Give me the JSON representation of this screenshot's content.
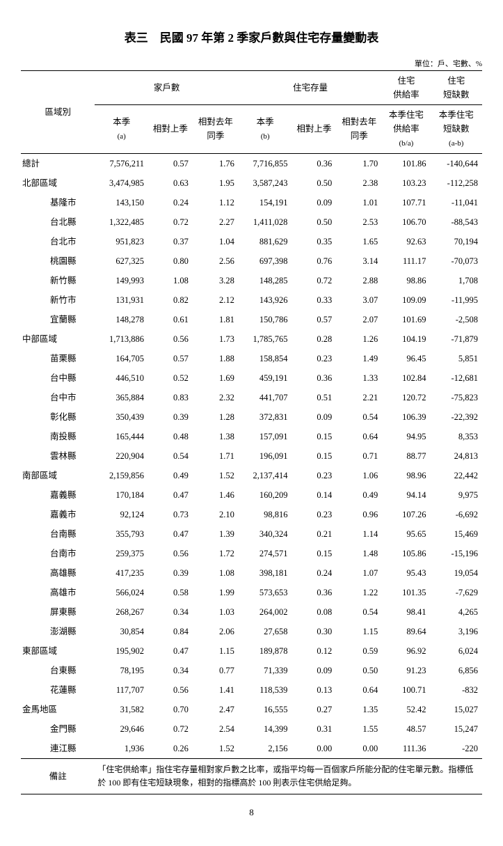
{
  "title": "表三　民國 97 年第 2 季家戶數與住宅存量變動表",
  "unit": "單位：戶、宅數、%",
  "header": {
    "region": "區域別",
    "group_households": "家戶數",
    "group_stock": "住宅存量",
    "group_supply": "住宅\n供給率",
    "group_shortage": "住宅\n短缺數",
    "hh_this": "本季",
    "hh_this_sub": "(a)",
    "hh_prev": "相對上季",
    "hh_lastyear": "相對去年\n同季",
    "st_this": "本季",
    "st_this_sub": "(b)",
    "st_prev": "相對上季",
    "st_lastyear": "相對去年\n同季",
    "supply": "本季住宅\n供給率",
    "supply_sub": "(b/a)",
    "shortage": "本季住宅\n短缺數",
    "shortage_sub": "(a-b)"
  },
  "rows": [
    {
      "indent": 0,
      "region": "總計",
      "a": "7,576,211",
      "b": "0.57",
      "c": "1.76",
      "d": "7,716,855",
      "e": "0.36",
      "f": "1.70",
      "g": "101.86",
      "h": "-140,644"
    },
    {
      "indent": 0,
      "region": "北部區域",
      "a": "3,474,985",
      "b": "0.63",
      "c": "1.95",
      "d": "3,587,243",
      "e": "0.50",
      "f": "2.38",
      "g": "103.23",
      "h": "-112,258"
    },
    {
      "indent": 1,
      "region": "基隆市",
      "a": "143,150",
      "b": "0.24",
      "c": "1.12",
      "d": "154,191",
      "e": "0.09",
      "f": "1.01",
      "g": "107.71",
      "h": "-11,041"
    },
    {
      "indent": 1,
      "region": "台北縣",
      "a": "1,322,485",
      "b": "0.72",
      "c": "2.27",
      "d": "1,411,028",
      "e": "0.50",
      "f": "2.53",
      "g": "106.70",
      "h": "-88,543"
    },
    {
      "indent": 1,
      "region": "台北市",
      "a": "951,823",
      "b": "0.37",
      "c": "1.04",
      "d": "881,629",
      "e": "0.35",
      "f": "1.65",
      "g": "92.63",
      "h": "70,194"
    },
    {
      "indent": 1,
      "region": "桃園縣",
      "a": "627,325",
      "b": "0.80",
      "c": "2.56",
      "d": "697,398",
      "e": "0.76",
      "f": "3.14",
      "g": "111.17",
      "h": "-70,073"
    },
    {
      "indent": 1,
      "region": "新竹縣",
      "a": "149,993",
      "b": "1.08",
      "c": "3.28",
      "d": "148,285",
      "e": "0.72",
      "f": "2.88",
      "g": "98.86",
      "h": "1,708"
    },
    {
      "indent": 1,
      "region": "新竹市",
      "a": "131,931",
      "b": "0.82",
      "c": "2.12",
      "d": "143,926",
      "e": "0.33",
      "f": "3.07",
      "g": "109.09",
      "h": "-11,995"
    },
    {
      "indent": 1,
      "region": "宜蘭縣",
      "a": "148,278",
      "b": "0.61",
      "c": "1.81",
      "d": "150,786",
      "e": "0.57",
      "f": "2.07",
      "g": "101.69",
      "h": "-2,508"
    },
    {
      "indent": 0,
      "region": "中部區域",
      "a": "1,713,886",
      "b": "0.56",
      "c": "1.73",
      "d": "1,785,765",
      "e": "0.28",
      "f": "1.26",
      "g": "104.19",
      "h": "-71,879"
    },
    {
      "indent": 1,
      "region": "苗栗縣",
      "a": "164,705",
      "b": "0.57",
      "c": "1.88",
      "d": "158,854",
      "e": "0.23",
      "f": "1.49",
      "g": "96.45",
      "h": "5,851"
    },
    {
      "indent": 1,
      "region": "台中縣",
      "a": "446,510",
      "b": "0.52",
      "c": "1.69",
      "d": "459,191",
      "e": "0.36",
      "f": "1.33",
      "g": "102.84",
      "h": "-12,681"
    },
    {
      "indent": 1,
      "region": "台中市",
      "a": "365,884",
      "b": "0.83",
      "c": "2.32",
      "d": "441,707",
      "e": "0.51",
      "f": "2.21",
      "g": "120.72",
      "h": "-75,823"
    },
    {
      "indent": 1,
      "region": "彰化縣",
      "a": "350,439",
      "b": "0.39",
      "c": "1.28",
      "d": "372,831",
      "e": "0.09",
      "f": "0.54",
      "g": "106.39",
      "h": "-22,392"
    },
    {
      "indent": 1,
      "region": "南投縣",
      "a": "165,444",
      "b": "0.48",
      "c": "1.38",
      "d": "157,091",
      "e": "0.15",
      "f": "0.64",
      "g": "94.95",
      "h": "8,353"
    },
    {
      "indent": 1,
      "region": "雲林縣",
      "a": "220,904",
      "b": "0.54",
      "c": "1.71",
      "d": "196,091",
      "e": "0.15",
      "f": "0.71",
      "g": "88.77",
      "h": "24,813"
    },
    {
      "indent": 0,
      "region": "南部區域",
      "a": "2,159,856",
      "b": "0.49",
      "c": "1.52",
      "d": "2,137,414",
      "e": "0.23",
      "f": "1.06",
      "g": "98.96",
      "h": "22,442"
    },
    {
      "indent": 1,
      "region": "嘉義縣",
      "a": "170,184",
      "b": "0.47",
      "c": "1.46",
      "d": "160,209",
      "e": "0.14",
      "f": "0.49",
      "g": "94.14",
      "h": "9,975"
    },
    {
      "indent": 1,
      "region": "嘉義市",
      "a": "92,124",
      "b": "0.73",
      "c": "2.10",
      "d": "98,816",
      "e": "0.23",
      "f": "0.96",
      "g": "107.26",
      "h": "-6,692"
    },
    {
      "indent": 1,
      "region": "台南縣",
      "a": "355,793",
      "b": "0.47",
      "c": "1.39",
      "d": "340,324",
      "e": "0.21",
      "f": "1.14",
      "g": "95.65",
      "h": "15,469"
    },
    {
      "indent": 1,
      "region": "台南市",
      "a": "259,375",
      "b": "0.56",
      "c": "1.72",
      "d": "274,571",
      "e": "0.15",
      "f": "1.48",
      "g": "105.86",
      "h": "-15,196"
    },
    {
      "indent": 1,
      "region": "高雄縣",
      "a": "417,235",
      "b": "0.39",
      "c": "1.08",
      "d": "398,181",
      "e": "0.24",
      "f": "1.07",
      "g": "95.43",
      "h": "19,054"
    },
    {
      "indent": 1,
      "region": "高雄市",
      "a": "566,024",
      "b": "0.58",
      "c": "1.99",
      "d": "573,653",
      "e": "0.36",
      "f": "1.22",
      "g": "101.35",
      "h": "-7,629"
    },
    {
      "indent": 1,
      "region": "屏東縣",
      "a": "268,267",
      "b": "0.34",
      "c": "1.03",
      "d": "264,002",
      "e": "0.08",
      "f": "0.54",
      "g": "98.41",
      "h": "4,265"
    },
    {
      "indent": 1,
      "region": "澎湖縣",
      "a": "30,854",
      "b": "0.84",
      "c": "2.06",
      "d": "27,658",
      "e": "0.30",
      "f": "1.15",
      "g": "89.64",
      "h": "3,196"
    },
    {
      "indent": 0,
      "region": "東部區域",
      "a": "195,902",
      "b": "0.47",
      "c": "1.15",
      "d": "189,878",
      "e": "0.12",
      "f": "0.59",
      "g": "96.92",
      "h": "6,024"
    },
    {
      "indent": 1,
      "region": "台東縣",
      "a": "78,195",
      "b": "0.34",
      "c": "0.77",
      "d": "71,339",
      "e": "0.09",
      "f": "0.50",
      "g": "91.23",
      "h": "6,856"
    },
    {
      "indent": 1,
      "region": "花蓮縣",
      "a": "117,707",
      "b": "0.56",
      "c": "1.41",
      "d": "118,539",
      "e": "0.13",
      "f": "0.64",
      "g": "100.71",
      "h": "-832"
    },
    {
      "indent": 0,
      "region": "金馬地區",
      "a": "31,582",
      "b": "0.70",
      "c": "2.47",
      "d": "16,555",
      "e": "0.27",
      "f": "1.35",
      "g": "52.42",
      "h": "15,027"
    },
    {
      "indent": 1,
      "region": "金門縣",
      "a": "29,646",
      "b": "0.72",
      "c": "2.54",
      "d": "14,399",
      "e": "0.31",
      "f": "1.55",
      "g": "48.57",
      "h": "15,247"
    },
    {
      "indent": 1,
      "region": "連江縣",
      "a": "1,936",
      "b": "0.26",
      "c": "1.52",
      "d": "2,156",
      "e": "0.00",
      "f": "0.00",
      "g": "111.36",
      "h": "-220"
    }
  ],
  "note_label": "備註",
  "note_text": "「住宅供給率」指住宅存量相對家戶數之比率，或指平均每一百個家戶所能分配的住宅單元數。指標低於 100 即有住宅短缺現象，相對的指標高於 100 則表示住宅供給足夠。",
  "page": "8"
}
